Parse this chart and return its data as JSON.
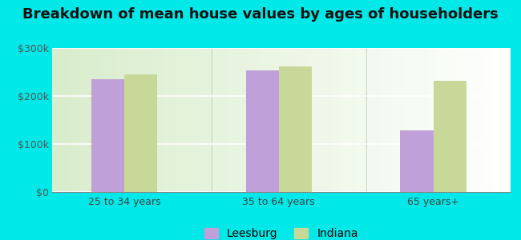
{
  "title": "Breakdown of mean house values by ages of householders",
  "categories": [
    "25 to 34 years",
    "35 to 64 years",
    "65 years+"
  ],
  "leesburg_values": [
    235000,
    253000,
    128000
  ],
  "indiana_values": [
    245000,
    262000,
    232000
  ],
  "bar_color_leesburg": "#c0a0d8",
  "bar_color_indiana": "#c8d898",
  "ylim": [
    0,
    300000
  ],
  "yticks": [
    0,
    100000,
    200000,
    300000
  ],
  "ytick_labels": [
    "$0",
    "$100k",
    "$200k",
    "$300k"
  ],
  "background_outer": "#00e8e8",
  "legend_labels": [
    "Leesburg",
    "Indiana"
  ],
  "title_fontsize": 13,
  "tick_fontsize": 9,
  "legend_fontsize": 10,
  "bar_width": 0.32,
  "group_positions": [
    1.0,
    2.5,
    4.0
  ]
}
